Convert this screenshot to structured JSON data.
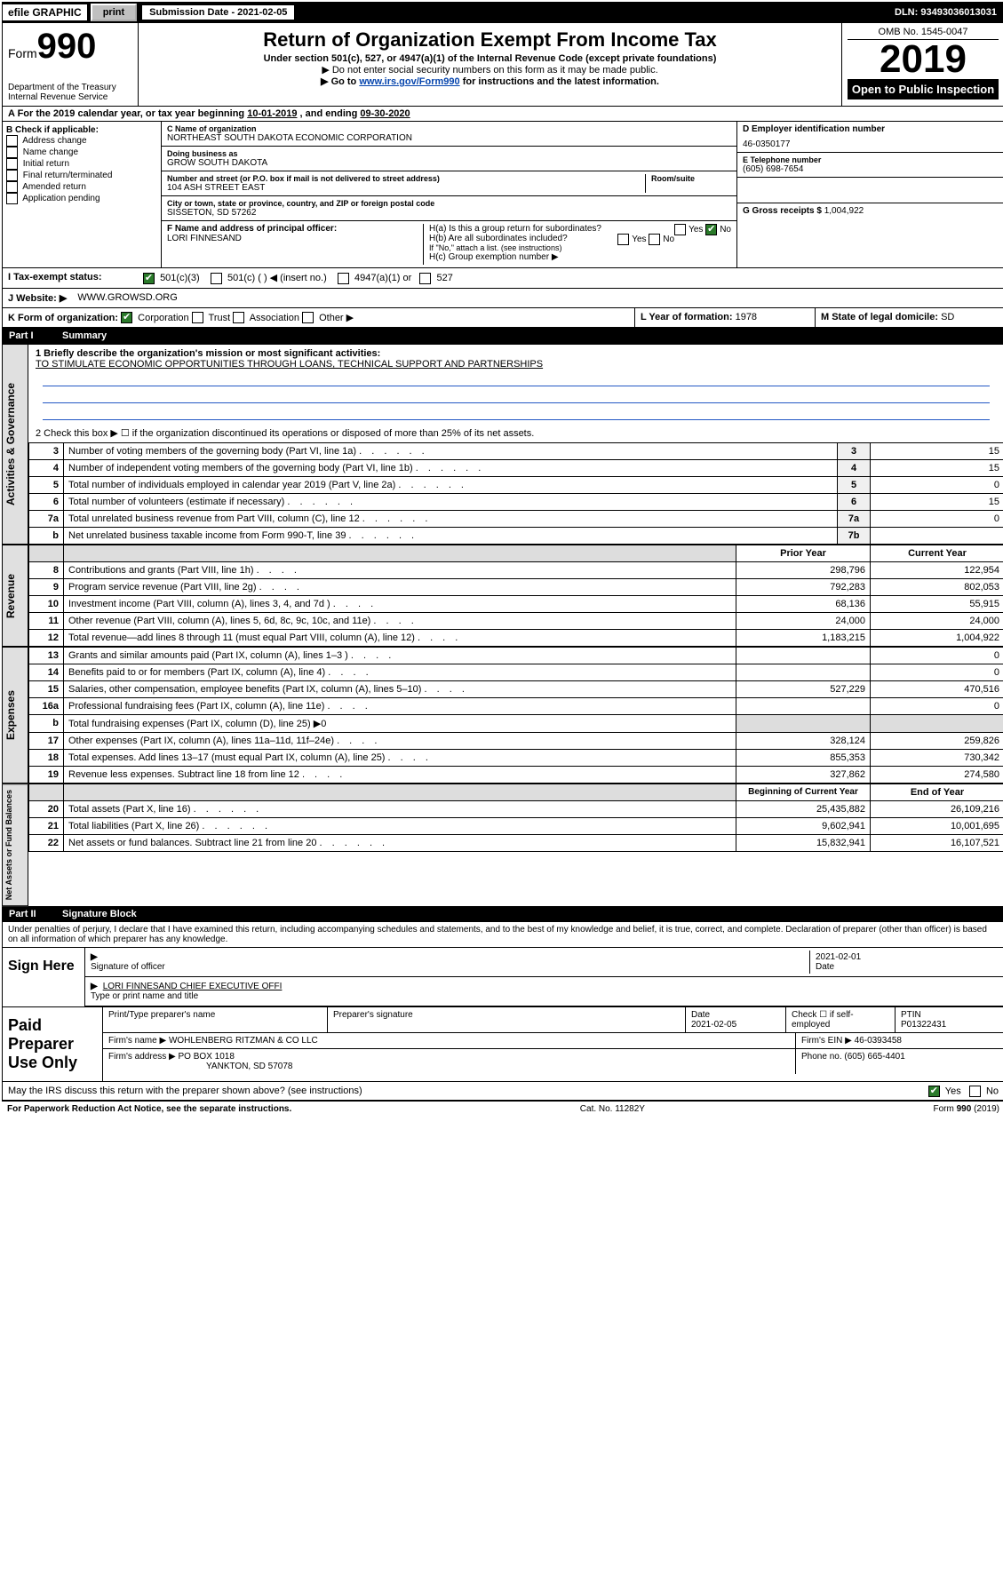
{
  "topbar": {
    "efile": "efile GRAPHIC",
    "print": "print",
    "subdate_label": "Submission Date - 2021-02-05",
    "dln": "DLN: 93493036013031"
  },
  "header": {
    "form_prefix": "Form",
    "form_num": "990",
    "dept1": "Department of the Treasury",
    "dept2": "Internal Revenue Service",
    "title": "Return of Organization Exempt From Income Tax",
    "subtitle": "Under section 501(c), 527, or 4947(a)(1) of the Internal Revenue Code (except private foundations)",
    "note1": "▶ Do not enter social security numbers on this form as it may be made public.",
    "note2a": "▶ Go to ",
    "note2_link": "www.irs.gov/Form990",
    "note2b": " for instructions and the latest information.",
    "omb": "OMB No. 1545-0047",
    "year": "2019",
    "inspect": "Open to Public Inspection"
  },
  "period": {
    "text_a": "A   For the 2019 calendar year, or tax year beginning ",
    "begin": "10-01-2019",
    "mid": " , and ending ",
    "end": "09-30-2020"
  },
  "blockB": {
    "title": "B Check if applicable:",
    "items": [
      "Address change",
      "Name change",
      "Initial return",
      "Final return/terminated",
      "Amended return",
      "Application pending"
    ]
  },
  "blockC": {
    "name_label": "C Name of organization",
    "name": "NORTHEAST SOUTH DAKOTA ECONOMIC CORPORATION",
    "dba_label": "Doing business as",
    "dba": "GROW SOUTH DAKOTA",
    "addr_label": "Number and street (or P.O. box if mail is not delivered to street address)",
    "addr": "104 ASH STREET EAST",
    "room_label": "Room/suite",
    "city_label": "City or town, state or province, country, and ZIP or foreign postal code",
    "city": "SISSETON, SD  57262",
    "f_label": "F Name and address of principal officer:",
    "f_name": "LORI FINNESAND"
  },
  "blockD": {
    "ein_label": "D Employer identification number",
    "ein": "46-0350177",
    "phone_label": "E Telephone number",
    "phone": "(605) 698-7654",
    "gross_label": "G Gross receipts $",
    "gross": "1,004,922"
  },
  "blockH": {
    "a": "H(a) Is this a group return for subordinates?",
    "b": "H(b) Are all subordinates included?",
    "b_note": "If \"No,\" attach a list. (see instructions)",
    "c": "H(c) Group exemption number ▶",
    "yes": "Yes",
    "no": "No"
  },
  "rowI": {
    "label": "I    Tax-exempt status:",
    "o1": "501(c)(3)",
    "o2": "501(c) (   ) ◀ (insert no.)",
    "o3": "4947(a)(1) or",
    "o4": "527"
  },
  "rowJ": {
    "label": "J    Website: ▶",
    "val": "WWW.GROWSD.ORG"
  },
  "rowK": {
    "label": "K Form of organization:",
    "opts": [
      "Corporation",
      "Trust",
      "Association",
      "Other ▶"
    ],
    "l_label": "L Year of formation:",
    "l_val": "1978",
    "m_label": "M State of legal domicile:",
    "m_val": "SD"
  },
  "part1": {
    "num": "Part I",
    "title": "Summary",
    "mission_label": "1   Briefly describe the organization's mission or most significant activities:",
    "mission": "TO STIMULATE ECONOMIC OPPORTUNITIES THROUGH LOANS, TECHNICAL SUPPORT AND PARTNERSHIPS",
    "line2": "2   Check this box ▶ ☐ if the organization discontinued its operations or disposed of more than 25% of its net assets.",
    "rows_gov": [
      {
        "n": "3",
        "t": "Number of voting members of the governing body (Part VI, line 1a)",
        "ref": "3",
        "v": "15"
      },
      {
        "n": "4",
        "t": "Number of independent voting members of the governing body (Part VI, line 1b)",
        "ref": "4",
        "v": "15"
      },
      {
        "n": "5",
        "t": "Total number of individuals employed in calendar year 2019 (Part V, line 2a)",
        "ref": "5",
        "v": "0"
      },
      {
        "n": "6",
        "t": "Total number of volunteers (estimate if necessary)",
        "ref": "6",
        "v": "15"
      },
      {
        "n": "7a",
        "t": "Total unrelated business revenue from Part VIII, column (C), line 12",
        "ref": "7a",
        "v": "0"
      },
      {
        "n": "b",
        "t": "Net unrelated business taxable income from Form 990-T, line 39",
        "ref": "7b",
        "v": ""
      }
    ],
    "col_prior": "Prior Year",
    "col_curr": "Current Year",
    "rows_rev": [
      {
        "n": "8",
        "t": "Contributions and grants (Part VIII, line 1h)",
        "p": "298,796",
        "c": "122,954"
      },
      {
        "n": "9",
        "t": "Program service revenue (Part VIII, line 2g)",
        "p": "792,283",
        "c": "802,053"
      },
      {
        "n": "10",
        "t": "Investment income (Part VIII, column (A), lines 3, 4, and 7d )",
        "p": "68,136",
        "c": "55,915"
      },
      {
        "n": "11",
        "t": "Other revenue (Part VIII, column (A), lines 5, 6d, 8c, 9c, 10c, and 11e)",
        "p": "24,000",
        "c": "24,000"
      },
      {
        "n": "12",
        "t": "Total revenue—add lines 8 through 11 (must equal Part VIII, column (A), line 12)",
        "p": "1,183,215",
        "c": "1,004,922"
      }
    ],
    "rows_exp": [
      {
        "n": "13",
        "t": "Grants and similar amounts paid (Part IX, column (A), lines 1–3 )",
        "p": "",
        "c": "0"
      },
      {
        "n": "14",
        "t": "Benefits paid to or for members (Part IX, column (A), line 4)",
        "p": "",
        "c": "0"
      },
      {
        "n": "15",
        "t": "Salaries, other compensation, employee benefits (Part IX, column (A), lines 5–10)",
        "p": "527,229",
        "c": "470,516"
      },
      {
        "n": "16a",
        "t": "Professional fundraising fees (Part IX, column (A), line 11e)",
        "p": "",
        "c": "0"
      },
      {
        "n": "b",
        "t": "Total fundraising expenses (Part IX, column (D), line 25) ▶0",
        "p": "—",
        "c": "—"
      },
      {
        "n": "17",
        "t": "Other expenses (Part IX, column (A), lines 11a–11d, 11f–24e)",
        "p": "328,124",
        "c": "259,826"
      },
      {
        "n": "18",
        "t": "Total expenses. Add lines 13–17 (must equal Part IX, column (A), line 25)",
        "p": "855,353",
        "c": "730,342"
      },
      {
        "n": "19",
        "t": "Revenue less expenses. Subtract line 18 from line 12",
        "p": "327,862",
        "c": "274,580"
      }
    ],
    "col_begin": "Beginning of Current Year",
    "col_end": "End of Year",
    "rows_net": [
      {
        "n": "20",
        "t": "Total assets (Part X, line 16)",
        "p": "25,435,882",
        "c": "26,109,216"
      },
      {
        "n": "21",
        "t": "Total liabilities (Part X, line 26)",
        "p": "9,602,941",
        "c": "10,001,695"
      },
      {
        "n": "22",
        "t": "Net assets or fund balances. Subtract line 21 from line 20",
        "p": "15,832,941",
        "c": "16,107,521"
      }
    ],
    "vside_gov": "Activities & Governance",
    "vside_rev": "Revenue",
    "vside_exp": "Expenses",
    "vside_net": "Net Assets or Fund Balances"
  },
  "part2": {
    "num": "Part II",
    "title": "Signature Block",
    "decl": "Under penalties of perjury, I declare that I have examined this return, including accompanying schedules and statements, and to the best of my knowledge and belief, it is true, correct, and complete. Declaration of preparer (other than officer) is based on all information of which preparer has any knowledge.",
    "sign_here": "Sign Here",
    "sig_officer": "Signature of officer",
    "sig_date": "2021-02-01",
    "date_label": "Date",
    "officer_name": "LORI FINNESAND CHIEF EXECUTIVE OFFI",
    "officer_sub": "Type or print name and title",
    "paid_label": "Paid Preparer Use Only",
    "p_name_label": "Print/Type preparer's name",
    "p_sig_label": "Preparer's signature",
    "p_date_label": "Date",
    "p_date": "2021-02-05",
    "p_check_label": "Check ☐ if self-employed",
    "ptin_label": "PTIN",
    "ptin": "P01322431",
    "firm_name_label": "Firm's name    ▶",
    "firm_name": "WOHLENBERG RITZMAN & CO LLC",
    "firm_ein_label": "Firm's EIN ▶",
    "firm_ein": "46-0393458",
    "firm_addr_label": "Firm's address ▶",
    "firm_addr1": "PO BOX 1018",
    "firm_addr2": "YANKTON, SD  57078",
    "firm_phone_label": "Phone no.",
    "firm_phone": "(605) 665-4401",
    "discuss": "May the IRS discuss this return with the preparer shown above? (see instructions)",
    "yes": "Yes",
    "no": "No"
  },
  "footer": {
    "pra": "For Paperwork Reduction Act Notice, see the separate instructions.",
    "cat": "Cat. No. 11282Y",
    "form": "Form 990 (2019)"
  }
}
